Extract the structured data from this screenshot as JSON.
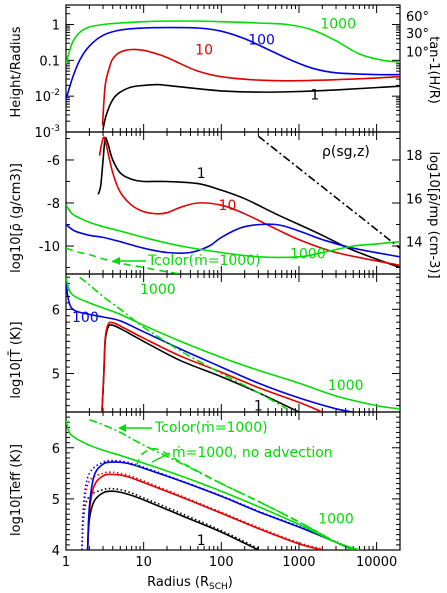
{
  "chart_data": {
    "type": "line",
    "x_axis": {
      "label": "Radius (R",
      "label_sub": "SCH",
      "label_end": ")",
      "scale": "log",
      "range": [
        1,
        20000
      ],
      "tick_labels": [
        "1",
        "10",
        "100",
        "1000",
        "10000"
      ]
    },
    "colors": {
      "1": "#000000",
      "10": "#e00000",
      "100": "#0000e0",
      "1000": "#00dd00"
    },
    "panels": [
      {
        "id": "height",
        "ylabel": "Height/Radius",
        "y_scale": "log",
        "ylim": [
          0.001,
          3.5
        ],
        "tick_labels": [
          "1",
          "0.1",
          "10-2",
          "10-3"
        ],
        "right_label": "tan-1(H/R)",
        "right_ticks": [
          "60°",
          "30°",
          "10°"
        ],
        "series": [
          {
            "name": "1",
            "line_label": "1",
            "x": [
              3.0,
              3.3,
              4,
              5,
              7,
              10,
              15,
              20,
              40,
              100,
              300,
              1000,
              3000,
              20000
            ],
            "y": [
              0.0012,
              0.003,
              0.008,
              0.013,
              0.018,
              0.02,
              0.021,
              0.02,
              0.017,
              0.014,
              0.013,
              0.0135,
              0.015,
              0.019
            ]
          },
          {
            "name": "10",
            "line_label": "10",
            "x": [
              2.95,
              3.2,
              3.6,
              4,
              5,
              7,
              10,
              15,
              20,
              30,
              50,
              100,
              300,
              1000,
              5000,
              20000
            ],
            "y": [
              0.0015,
              0.02,
              0.06,
              0.11,
              0.17,
              0.2,
              0.19,
              0.15,
              0.12,
              0.08,
              0.05,
              0.035,
              0.028,
              0.027,
              0.03,
              0.035
            ]
          },
          {
            "name": "100",
            "line_label": "100",
            "x": [
              1.0,
              1.2,
              1.5,
              2,
              3,
              5,
              10,
              20,
              50,
              100,
              200,
              400,
              800,
              1500,
              3000,
              10000,
              20000
            ],
            "y": [
              0.008,
              0.03,
              0.1,
              0.25,
              0.5,
              0.7,
              0.8,
              0.82,
              0.8,
              0.65,
              0.4,
              0.2,
              0.1,
              0.06,
              0.045,
              0.04,
              0.04
            ]
          },
          {
            "name": "1000",
            "line_label": "1000",
            "x": [
              1.0,
              1.2,
              1.5,
              2,
              3,
              5,
              10,
              30,
              100,
              300,
              700,
              1500,
              3000,
              6000,
              12000,
              20000
            ],
            "y": [
              0.08,
              0.3,
              0.6,
              0.85,
              1.0,
              1.1,
              1.2,
              1.25,
              1.2,
              1.1,
              1.0,
              0.7,
              0.35,
              0.15,
              0.1,
              0.09
            ]
          }
        ]
      },
      {
        "id": "density",
        "ylabel": "log10[ρ̄ (g/cm3)]",
        "y_scale": "linear",
        "ylim": [
          -11.3,
          -4.7
        ],
        "tick_labels": [
          "-6",
          "-8",
          "-10"
        ],
        "right_label": "log10[ρ̄/mp (cm-3)]",
        "right_ticks": [
          "18",
          "16",
          "14"
        ],
        "annotation": "ρ(sg,z)",
        "series": [
          {
            "name": "1",
            "line_label": "1",
            "x": [
              2.6,
              2.8,
              3.0,
              3.2,
              3.5,
              4,
              5,
              7,
              10,
              20,
              50,
              100,
              200,
              500,
              1000,
              2000,
              5000,
              20000
            ],
            "y": [
              -7.6,
              -7.2,
              -6.0,
              -5.0,
              -5.3,
              -6.0,
              -6.6,
              -6.9,
              -7.0,
              -7.0,
              -7.1,
              -7.4,
              -7.8,
              -8.5,
              -9.0,
              -9.5,
              -10.2,
              -11.0
            ]
          },
          {
            "name": "10",
            "line_label": "10",
            "x": [
              2.7,
              2.9,
              3.1,
              3.4,
              4,
              5,
              7,
              10,
              15,
              20,
              30,
              50,
              100,
              200,
              500,
              1000,
              3000,
              20000
            ],
            "y": [
              -5.8,
              -5.2,
              -4.95,
              -5.5,
              -6.6,
              -7.5,
              -8.1,
              -8.4,
              -8.5,
              -8.45,
              -8.2,
              -8.0,
              -8.1,
              -8.5,
              -9.2,
              -9.7,
              -10.3,
              -10.9
            ]
          },
          {
            "name": "100",
            "line_label": "100",
            "x": [
              1.0,
              1.3,
              2,
              3,
              5,
              10,
              20,
              40,
              70,
              100,
              200,
              500,
              1000,
              2000,
              5000,
              20000
            ],
            "y": [
              -9.0,
              -9.3,
              -9.5,
              -9.6,
              -9.8,
              -10.1,
              -10.3,
              -10.3,
              -10.0,
              -9.6,
              -9.1,
              -9.0,
              -9.3,
              -9.7,
              -10.1,
              -10.5
            ]
          },
          {
            "name": "1000",
            "line_label": "1000",
            "x": [
              1.0,
              1.2,
              1.5,
              2,
              3,
              5,
              10,
              30,
              100,
              300,
              1000,
              2000,
              5000,
              10000,
              20000
            ],
            "y": [
              -8.1,
              -8.5,
              -8.7,
              -8.9,
              -9.1,
              -9.3,
              -9.6,
              -10.0,
              -10.3,
              -10.5,
              -10.5,
              -10.3,
              -10.0,
              -9.9,
              -9.8
            ]
          },
          {
            "name": "1000 (dashed)",
            "x": [
              1.0,
              1.5,
              2,
              3,
              5,
              10,
              20,
              30
            ],
            "y": [
              -10.1,
              -10.3,
              -10.4,
              -10.6,
              -10.8,
              -11.0,
              -11.2,
              -11.3
            ]
          },
          {
            "name": "ρ(sg,z)",
            "x": [
              300,
              20000
            ],
            "y": [
              -4.9,
              -10.1
            ]
          }
        ],
        "extra_labels": [
          "100",
          "1000"
        ]
      },
      {
        "id": "temp",
        "ylabel": "log10[T̄ (K)]",
        "y_scale": "linear",
        "ylim": [
          4.4,
          6.55
        ],
        "tick_labels": [
          "6",
          "5"
        ],
        "annotation": "Tcolor(ṁ=1000)",
        "series": [
          {
            "name": "1",
            "line_label": "1",
            "x": [
              2.9,
              3.05,
              3.2,
              3.5,
              4,
              5,
              10,
              30,
              100,
              300,
              1000
            ],
            "y": [
              4.4,
              4.9,
              5.5,
              5.73,
              5.75,
              5.7,
              5.5,
              5.2,
              4.95,
              4.7,
              4.4
            ]
          },
          {
            "name": "10",
            "x": [
              2.9,
              3.05,
              3.2,
              3.5,
              4,
              5,
              10,
              30,
              100,
              300,
              1000,
              2000
            ],
            "y": [
              4.4,
              4.95,
              5.55,
              5.77,
              5.79,
              5.74,
              5.55,
              5.27,
              5.02,
              4.78,
              4.55,
              4.4
            ]
          },
          {
            "name": "100",
            "x": [
              1.0,
              1.1,
              1.3,
              2,
              3,
              5,
              10,
              30,
              100,
              300,
              1000,
              3000,
              5000
            ],
            "y": [
              6.4,
              6.1,
              5.98,
              5.92,
              5.88,
              5.82,
              5.65,
              5.38,
              5.1,
              4.85,
              4.62,
              4.45,
              4.4
            ]
          },
          {
            "name": "1000",
            "line_label": "1000",
            "x": [
              1.0,
              1.1,
              1.3,
              2,
              3,
              5,
              10,
              30,
              100,
              300,
              1000,
              3000,
              10000,
              20000
            ],
            "y": [
              6.5,
              6.3,
              6.2,
              6.1,
              6.02,
              5.92,
              5.75,
              5.5,
              5.25,
              5.05,
              4.85,
              4.65,
              4.5,
              4.45
            ]
          },
          {
            "name": "Tcolor(ṁ=1000)",
            "x": [
              1.5,
              2,
              3,
              5,
              10,
              30,
              100,
              300,
              700
            ],
            "y": [
              6.5,
              6.38,
              6.2,
              6.0,
              5.72,
              5.35,
              5.0,
              4.7,
              4.45
            ]
          }
        ]
      },
      {
        "id": "teff",
        "ylabel": "log10[Teff (K)]",
        "y_scale": "linear",
        "ylim": [
          4.0,
          6.7
        ],
        "tick_labels": [
          "6",
          "5",
          "4"
        ],
        "annotation": "Tcolor(ṁ=1000)",
        "annotation2": "ṁ=1000, no advection",
        "series": [
          {
            "name": "1",
            "line_label": "1",
            "x": [
              1.9,
              2.0,
              2.3,
              3,
              4,
              6,
              10,
              30,
              100,
              300
            ],
            "y": [
              4.0,
              4.6,
              4.95,
              5.12,
              5.15,
              5.1,
              4.98,
              4.68,
              4.35,
              4.0
            ]
          },
          {
            "name": "1 (dotted)",
            "x": [
              1.6,
              1.7,
              2.0,
              3,
              4,
              6,
              10,
              30,
              100,
              300
            ],
            "y": [
              4.0,
              4.7,
              5.05,
              5.18,
              5.2,
              5.15,
              5.02,
              4.72,
              4.38,
              4.03
            ]
          },
          {
            "name": "10",
            "x": [
              1.9,
              2.0,
              2.3,
              3,
              4,
              6,
              10,
              30,
              100,
              300,
              1000,
              2000
            ],
            "y": [
              4.0,
              4.75,
              5.25,
              5.45,
              5.48,
              5.44,
              5.32,
              5.04,
              4.72,
              4.42,
              4.12,
              4.0
            ]
          },
          {
            "name": "10 (dotted)",
            "x": [
              1.6,
              1.7,
              2.0,
              3,
              4,
              6,
              10,
              30,
              100,
              300,
              1000,
              2000
            ],
            "y": [
              4.0,
              4.85,
              5.35,
              5.5,
              5.52,
              5.47,
              5.35,
              5.06,
              4.74,
              4.44,
              4.14,
              4.02
            ]
          },
          {
            "name": "100",
            "x": [
              1.9,
              2.0,
              2.3,
              3,
              4,
              6,
              10,
              30,
              100,
              300,
              1000,
              3000,
              5000
            ],
            "y": [
              4.0,
              4.85,
              5.45,
              5.68,
              5.72,
              5.7,
              5.6,
              5.35,
              5.05,
              4.75,
              4.45,
              4.15,
              4.0
            ]
          },
          {
            "name": "100 (dotted)",
            "x": [
              1.6,
              1.7,
              2.0,
              3,
              4,
              6,
              10,
              30,
              100,
              300,
              1000,
              3000,
              5000
            ],
            "y": [
              4.0,
              4.95,
              5.5,
              5.72,
              5.75,
              5.72,
              5.62,
              5.36,
              5.06,
              4.76,
              4.46,
              4.16,
              4.02
            ]
          },
          {
            "name": "1000",
            "line_label": "1000",
            "x": [
              1.0,
              1.1,
              1.3,
              1.6,
              2,
              3,
              5,
              10,
              30,
              100,
              300,
              1000,
              3000,
              6000
            ],
            "y": [
              6.55,
              6.3,
              6.2,
              6.12,
              6.05,
              5.95,
              5.85,
              5.7,
              5.45,
              5.15,
              4.85,
              4.5,
              4.15,
              4.0
            ]
          },
          {
            "name": "Tcolor(ṁ=1000)",
            "x": [
              2,
              3,
              5,
              10,
              30,
              100,
              300,
              1000,
              3000,
              5000
            ],
            "y": [
              6.55,
              6.45,
              6.3,
              6.05,
              5.7,
              5.3,
              4.95,
              4.55,
              4.15,
              4.0
            ]
          },
          {
            "name": "no advection",
            "x": [
              8,
              10,
              15,
              30,
              100,
              300,
              1000,
              3000
            ],
            "y": [
              5.65,
              5.9,
              5.97,
              5.72,
              5.3,
              4.95,
              4.55,
              4.15
            ]
          }
        ]
      }
    ]
  }
}
